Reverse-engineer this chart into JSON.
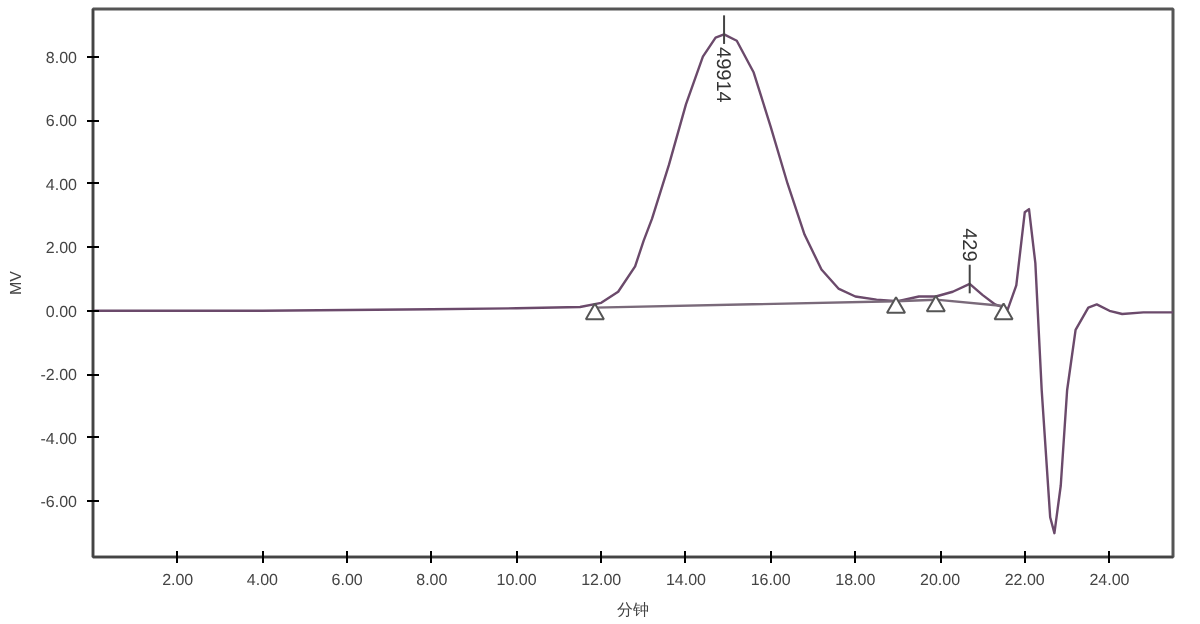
{
  "chart_data": {
    "type": "line",
    "xlabel": "分钟",
    "ylabel": "MV",
    "xlim": [
      0,
      25.5
    ],
    "ylim": [
      -7.75,
      9.5
    ],
    "xticks": [
      {
        "value": 2,
        "label": "2.00"
      },
      {
        "value": 4,
        "label": "4.00"
      },
      {
        "value": 6,
        "label": "6.00"
      },
      {
        "value": 8,
        "label": "8.00"
      },
      {
        "value": 10,
        "label": "10.00"
      },
      {
        "value": 12,
        "label": "12.00"
      },
      {
        "value": 14,
        "label": "14.00"
      },
      {
        "value": 16,
        "label": "16.00"
      },
      {
        "value": 18,
        "label": "18.00"
      },
      {
        "value": 20,
        "label": "20.00"
      },
      {
        "value": 22,
        "label": "22.00"
      },
      {
        "value": 24,
        "label": "24.00"
      }
    ],
    "yticks": [
      {
        "value": -6,
        "label": "-6.00"
      },
      {
        "value": -4,
        "label": "-4.00"
      },
      {
        "value": -2,
        "label": "-2.00"
      },
      {
        "value": 0,
        "label": "0.00"
      },
      {
        "value": 2,
        "label": "2.00"
      },
      {
        "value": 4,
        "label": "4.00"
      },
      {
        "value": 6,
        "label": "6.00"
      },
      {
        "value": 8,
        "label": "8.00"
      }
    ],
    "grid": false,
    "series": [
      {
        "color": "#6b4a6b",
        "x": [
          0,
          4,
          8,
          10,
          11.5,
          12,
          12.4,
          12.8,
          13.0,
          13.2,
          13.6,
          14.0,
          14.4,
          14.7,
          14.9,
          15.2,
          15.6,
          16.0,
          16.4,
          16.8,
          17.2,
          17.6,
          18.0,
          18.5,
          19.0,
          19.5,
          19.9,
          20.3,
          20.7,
          21.0,
          21.3,
          21.6,
          21.8,
          22.0,
          22.1,
          22.25,
          22.4,
          22.6,
          22.7,
          22.85,
          23.0,
          23.2,
          23.5,
          23.7,
          24.0,
          24.3,
          24.8,
          25.5
        ],
        "values": [
          0,
          0,
          0.05,
          0.08,
          0.12,
          0.25,
          0.6,
          1.4,
          2.2,
          2.9,
          4.6,
          6.5,
          8.0,
          8.6,
          8.7,
          8.5,
          7.5,
          5.8,
          4.0,
          2.4,
          1.3,
          0.7,
          0.45,
          0.35,
          0.3,
          0.45,
          0.45,
          0.6,
          0.85,
          0.5,
          0.2,
          0.05,
          0.8,
          3.1,
          3.2,
          1.5,
          -2.5,
          -6.5,
          -7.0,
          -5.5,
          -2.5,
          -0.6,
          0.1,
          0.2,
          0.0,
          -0.1,
          -0.05,
          -0.05
        ]
      },
      {
        "color": "#7a6a7a",
        "x": [
          11.85,
          18.96,
          19.9,
          21.5
        ],
        "values": [
          0.1,
          0.3,
          0.35,
          0.15
        ]
      },
      {
        "type": "scatter",
        "marker": "triangle",
        "color": "#555555",
        "x": [
          11.85,
          18.96,
          19.9,
          21.5
        ],
        "values": [
          -0.1,
          0.1,
          0.15,
          -0.1
        ]
      }
    ],
    "annotations": [
      {
        "text": "49914",
        "x": 14.9,
        "y": 8.7
      },
      {
        "text": "429",
        "x": 20.7,
        "y": 0.85
      }
    ]
  }
}
